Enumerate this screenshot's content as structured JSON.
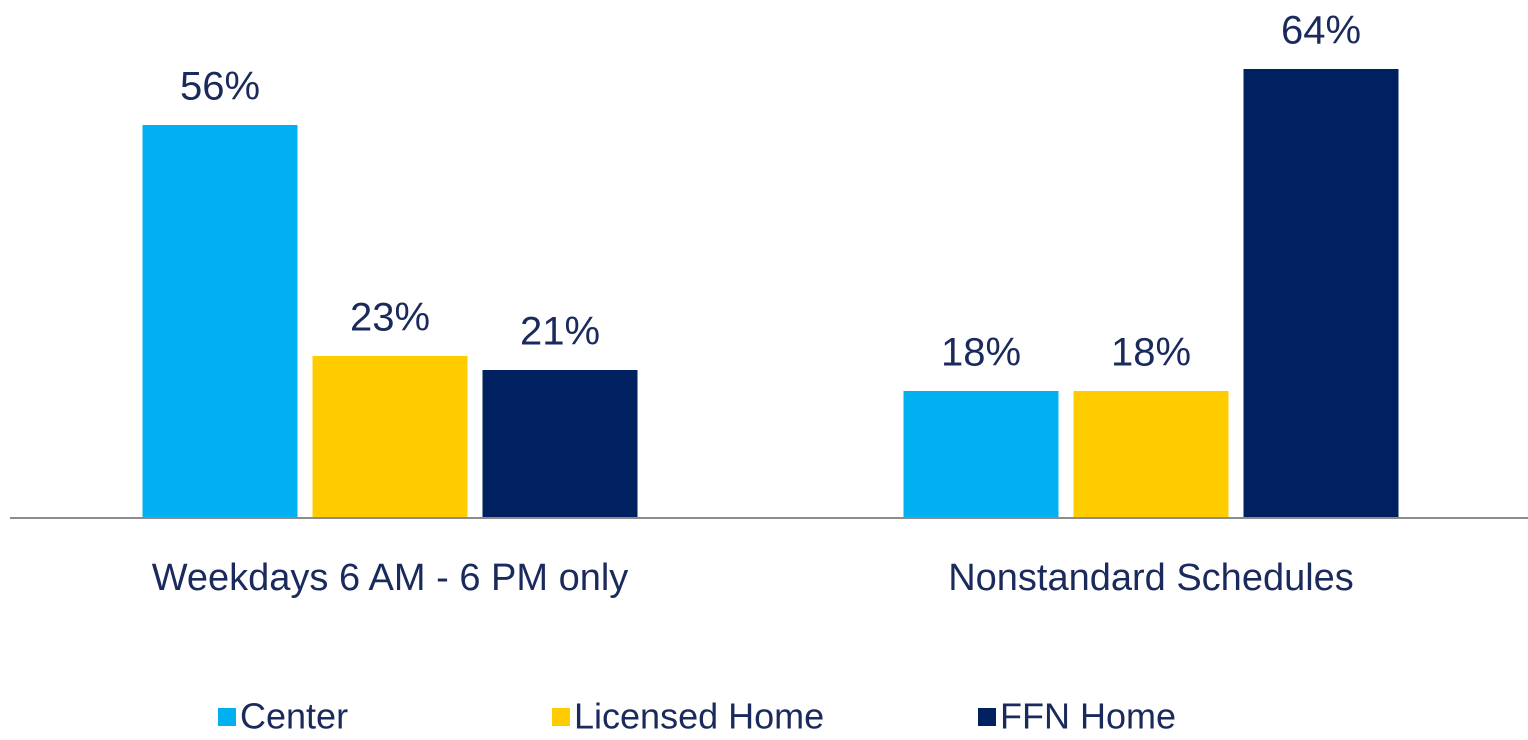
{
  "chart_data": {
    "type": "bar",
    "categories": [
      "Weekdays 6 AM - 6 PM only",
      "Nonstandard Schedules"
    ],
    "series": [
      {
        "name": "Center",
        "color": "#00b0f0",
        "values": [
          56,
          18
        ],
        "value_labels": [
          "56%",
          "18%"
        ]
      },
      {
        "name": "Licensed Home",
        "color": "#ffcc00",
        "values": [
          23,
          18
        ],
        "value_labels": [
          "23%",
          "18%"
        ]
      },
      {
        "name": "FFN Home",
        "color": "#002060",
        "values": [
          21,
          64
        ],
        "value_labels": [
          "21%",
          "64%"
        ]
      }
    ],
    "legend": "bottom"
  }
}
